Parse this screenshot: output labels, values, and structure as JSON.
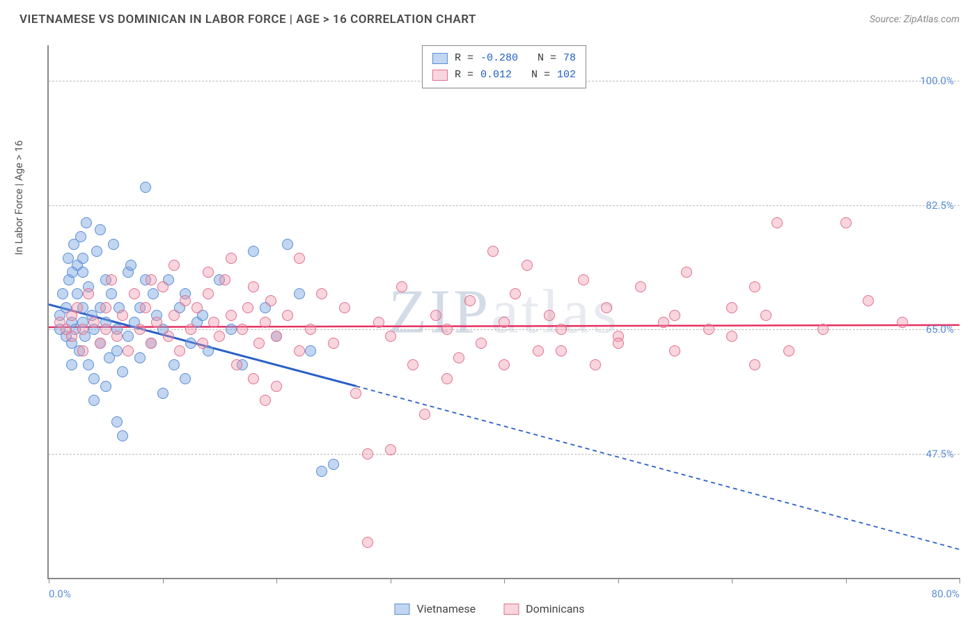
{
  "title": "VIETNAMESE VS DOMINICAN IN LABOR FORCE | AGE > 16 CORRELATION CHART",
  "source": "Source: ZipAtlas.com",
  "ylabel": "In Labor Force | Age > 16",
  "watermark_a": "ZIP",
  "watermark_b": "atlas",
  "chart": {
    "type": "scatter",
    "xlim": [
      0,
      80
    ],
    "ylim": [
      30,
      105
    ],
    "x_min_label": "0.0%",
    "x_max_label": "80.0%",
    "background_color": "#ffffff",
    "grid_color": "#bbbbbb",
    "axis_color": "#888888",
    "y_gridlines": [
      47.5,
      65.0,
      82.5,
      100.0
    ],
    "y_labels": [
      "47.5%",
      "65.0%",
      "82.5%",
      "100.0%"
    ],
    "x_ticks": [
      0,
      10,
      20,
      30,
      40,
      50,
      60,
      70,
      80
    ],
    "point_radius": 8,
    "series": [
      {
        "name": "Vietnamese",
        "fill": "rgba(120,165,225,0.45)",
        "stroke": "#5b8dd6",
        "line_color": "#2a5fc7",
        "R": "-0.280",
        "N": "78",
        "trend": {
          "x1": 0,
          "y1": 68.5,
          "x2": 27,
          "y2": 57,
          "x2_ext": 80,
          "y2_ext": 34
        },
        "points": [
          [
            1,
            67
          ],
          [
            1,
            65
          ],
          [
            1.2,
            70
          ],
          [
            1.5,
            68
          ],
          [
            1.5,
            64
          ],
          [
            1.8,
            72
          ],
          [
            2,
            66
          ],
          [
            2,
            63
          ],
          [
            2,
            60
          ],
          [
            2.2,
            77
          ],
          [
            2.3,
            65
          ],
          [
            2.5,
            70
          ],
          [
            2.5,
            74
          ],
          [
            2.7,
            62
          ],
          [
            3,
            68
          ],
          [
            3,
            66
          ],
          [
            3,
            73
          ],
          [
            3.2,
            64
          ],
          [
            3.5,
            60
          ],
          [
            3.5,
            71
          ],
          [
            3.8,
            67
          ],
          [
            4,
            65
          ],
          [
            4,
            58
          ],
          [
            4.2,
            76
          ],
          [
            4.5,
            63
          ],
          [
            4.5,
            68
          ],
          [
            5,
            72
          ],
          [
            5,
            66
          ],
          [
            5,
            57
          ],
          [
            5.3,
            61
          ],
          [
            5.5,
            70
          ],
          [
            6,
            65
          ],
          [
            6,
            62
          ],
          [
            6.2,
            68
          ],
          [
            6.5,
            59
          ],
          [
            7,
            64
          ],
          [
            7,
            73
          ],
          [
            7.5,
            66
          ],
          [
            8,
            61
          ],
          [
            8,
            68
          ],
          [
            8.5,
            85
          ],
          [
            8.5,
            72
          ],
          [
            9,
            63
          ],
          [
            9.5,
            67
          ],
          [
            10,
            65
          ],
          [
            10.5,
            72
          ],
          [
            11,
            60
          ],
          [
            11.5,
            68
          ],
          [
            12,
            70
          ],
          [
            12.5,
            63
          ],
          [
            13,
            66
          ],
          [
            14,
            62
          ],
          [
            15,
            72
          ],
          [
            16,
            65
          ],
          [
            17,
            60
          ],
          [
            18,
            76
          ],
          [
            19,
            68
          ],
          [
            20,
            64
          ],
          [
            21,
            77
          ],
          [
            22,
            70
          ],
          [
            23,
            62
          ],
          [
            6,
            52
          ],
          [
            6.5,
            50
          ],
          [
            4,
            55
          ],
          [
            24,
            45
          ],
          [
            25,
            46
          ],
          [
            10,
            56
          ],
          [
            12,
            58
          ],
          [
            3,
            75
          ],
          [
            4.5,
            79
          ],
          [
            2.8,
            78
          ],
          [
            3.3,
            80
          ],
          [
            5.7,
            77
          ],
          [
            7.2,
            74
          ],
          [
            1.7,
            75
          ],
          [
            2.1,
            73
          ],
          [
            9.2,
            70
          ],
          [
            13.5,
            67
          ]
        ]
      },
      {
        "name": "Dominicans",
        "fill": "rgba(240,150,170,0.40)",
        "stroke": "#e07090",
        "line_color": "#e63060",
        "R": "0.012",
        "N": "102",
        "trend": {
          "x1": 0,
          "y1": 65.3,
          "x2": 80,
          "y2": 65.6
        },
        "points": [
          [
            1,
            66
          ],
          [
            1.5,
            65
          ],
          [
            2,
            67
          ],
          [
            2,
            64
          ],
          [
            2.5,
            68
          ],
          [
            3,
            65
          ],
          [
            3,
            62
          ],
          [
            3.5,
            70
          ],
          [
            4,
            66
          ],
          [
            4.5,
            63
          ],
          [
            5,
            68
          ],
          [
            5,
            65
          ],
          [
            5.5,
            72
          ],
          [
            6,
            64
          ],
          [
            6.5,
            67
          ],
          [
            7,
            62
          ],
          [
            7.5,
            70
          ],
          [
            8,
            65
          ],
          [
            8.5,
            68
          ],
          [
            9,
            63
          ],
          [
            9.5,
            66
          ],
          [
            10,
            71
          ],
          [
            10.5,
            64
          ],
          [
            11,
            67
          ],
          [
            11.5,
            62
          ],
          [
            12,
            69
          ],
          [
            12.5,
            65
          ],
          [
            13,
            68
          ],
          [
            13.5,
            63
          ],
          [
            14,
            70
          ],
          [
            14.5,
            66
          ],
          [
            15,
            64
          ],
          [
            15.5,
            72
          ],
          [
            16,
            67
          ],
          [
            16.5,
            60
          ],
          [
            17,
            65
          ],
          [
            17.5,
            68
          ],
          [
            18,
            71
          ],
          [
            18.5,
            63
          ],
          [
            19,
            66
          ],
          [
            19.5,
            69
          ],
          [
            20,
            64
          ],
          [
            21,
            67
          ],
          [
            22,
            62
          ],
          [
            22,
            75
          ],
          [
            23,
            65
          ],
          [
            24,
            70
          ],
          [
            25,
            63
          ],
          [
            26,
            68
          ],
          [
            27,
            56
          ],
          [
            28,
            47.5
          ],
          [
            29,
            66
          ],
          [
            30,
            64
          ],
          [
            31,
            71
          ],
          [
            32,
            60
          ],
          [
            33,
            53
          ],
          [
            34,
            67
          ],
          [
            35,
            65
          ],
          [
            36,
            61
          ],
          [
            37,
            69
          ],
          [
            38,
            63
          ],
          [
            39,
            76
          ],
          [
            40,
            66
          ],
          [
            41,
            70
          ],
          [
            42,
            74
          ],
          [
            43,
            62
          ],
          [
            44,
            67
          ],
          [
            45,
            65
          ],
          [
            47,
            72
          ],
          [
            48,
            60
          ],
          [
            49,
            68
          ],
          [
            50,
            64
          ],
          [
            52,
            71
          ],
          [
            54,
            66
          ],
          [
            55,
            62
          ],
          [
            56,
            73
          ],
          [
            58,
            65
          ],
          [
            60,
            68
          ],
          [
            62,
            71
          ],
          [
            62,
            60
          ],
          [
            63,
            67
          ],
          [
            68,
            65
          ],
          [
            72,
            69
          ],
          [
            75,
            66
          ],
          [
            28,
            35
          ],
          [
            18,
            58
          ],
          [
            19,
            55
          ],
          [
            20,
            57
          ],
          [
            14,
            73
          ],
          [
            16,
            75
          ],
          [
            11,
            74
          ],
          [
            9,
            72
          ],
          [
            30,
            48
          ],
          [
            35,
            58
          ],
          [
            40,
            60
          ],
          [
            45,
            62
          ],
          [
            50,
            63
          ],
          [
            55,
            67
          ],
          [
            60,
            64
          ],
          [
            65,
            62
          ],
          [
            70,
            80
          ],
          [
            64,
            80
          ]
        ]
      }
    ]
  },
  "legend_bottom": [
    {
      "label": "Vietnamese",
      "fill": "rgba(120,165,225,0.45)",
      "stroke": "#5b8dd6"
    },
    {
      "label": "Dominicans",
      "fill": "rgba(240,150,170,0.40)",
      "stroke": "#e07090"
    }
  ]
}
